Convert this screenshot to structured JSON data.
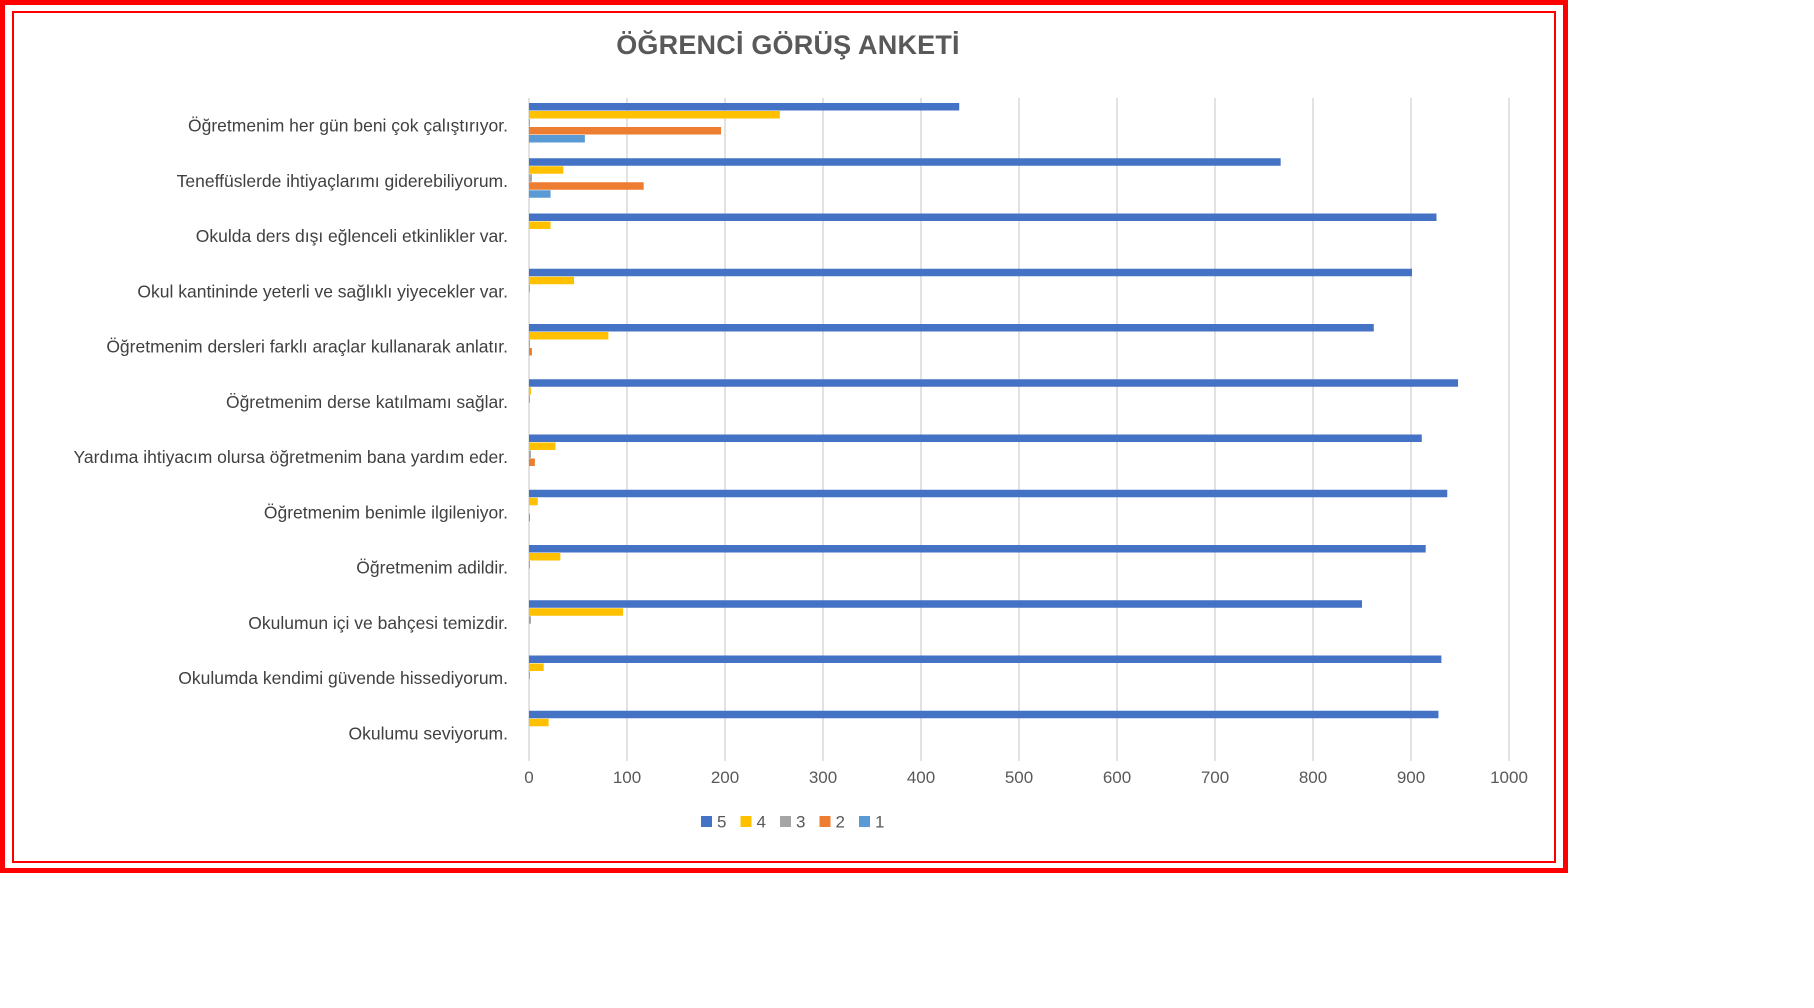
{
  "chart_data": {
    "type": "bar",
    "orientation": "horizontal",
    "title": "ÖĞRENCİ GÖRÜŞ ANKETİ",
    "xlabel": "",
    "ylabel": "",
    "xlim": [
      0,
      1000
    ],
    "x_ticks": [
      "0",
      "100",
      "200",
      "300",
      "400",
      "500",
      "600",
      "700",
      "800",
      "900",
      "1000"
    ],
    "grid": "vertical",
    "legend_position": "bottom",
    "categories": [
      "Öğretmenim her gün beni çok çalıştırıyor.",
      "Teneffüslerde ihtiyaçlarımı giderebiliyorum.",
      "Okulda ders dışı eğlenceli etkinlikler var.",
      "Okul kantininde yeterli ve sağlıklı yiyecekler var.",
      "Öğretmenim dersleri farklı araçlar kullanarak anlatır.",
      "Öğretmenim derse katılmamı sağlar.",
      "Yardıma ihtiyacım olursa öğretmenim bana yardım eder.",
      "Öğretmenim benimle ilgileniyor.",
      "Öğretmenim adildir.",
      "Okulumun içi ve bahçesi temizdir.",
      "Okulumda kendimi güvende hissediyorum.",
      "Okulumu seviyorum."
    ],
    "series": [
      {
        "name": "5",
        "color": "#4472c4",
        "values": [
          439,
          767,
          926,
          901,
          862,
          948,
          911,
          937,
          915,
          850,
          931,
          928
        ]
      },
      {
        "name": "4",
        "color": "#ffc000",
        "values": [
          256,
          35,
          22,
          46,
          81,
          2,
          27,
          9,
          32,
          96,
          15,
          20
        ]
      },
      {
        "name": "3",
        "color": "#a5a5a5",
        "values": [
          1,
          3,
          0,
          1,
          1,
          1,
          2,
          0,
          1,
          2,
          1,
          0
        ]
      },
      {
        "name": "2",
        "color": "#ed7d31",
        "values": [
          196,
          117,
          0,
          0,
          3,
          0,
          6,
          1,
          0,
          0,
          0,
          0
        ]
      },
      {
        "name": "1",
        "color": "#5b9bd5",
        "values": [
          57,
          22,
          0,
          0,
          0,
          0,
          0,
          0,
          0,
          0,
          0,
          0
        ]
      }
    ]
  }
}
